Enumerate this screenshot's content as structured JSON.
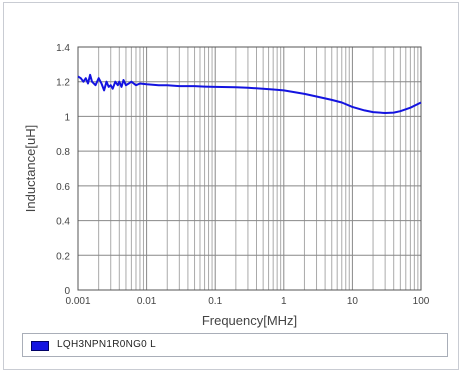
{
  "chart_data": {
    "type": "line",
    "xscale": "log",
    "xlabel": "Frequency[MHz]",
    "ylabel": "Inductance[uH]",
    "xlim": [
      0.001,
      100
    ],
    "ylim": [
      0,
      1.4
    ],
    "x_ticks": [
      "0.001",
      "0.01",
      "0.1",
      "1",
      "10",
      "100"
    ],
    "y_ticks": [
      "0",
      "0.2",
      "0.4",
      "0.6",
      "0.8",
      "1",
      "1.2",
      "1.4"
    ],
    "grid": true,
    "legend_position": "bottom",
    "colors": {
      "series": "#1414e0",
      "grid": "#aaaaaa",
      "axis_text": "#444444"
    },
    "series": [
      {
        "name": "LQH3NPN1R0NG0 L",
        "x": [
          0.001,
          0.0011,
          0.0012,
          0.0013,
          0.0014,
          0.0015,
          0.0016,
          0.0018,
          0.002,
          0.0022,
          0.0024,
          0.0026,
          0.0028,
          0.003,
          0.0032,
          0.0035,
          0.0038,
          0.004,
          0.0043,
          0.0046,
          0.005,
          0.0055,
          0.006,
          0.007,
          0.008,
          0.01,
          0.015,
          0.02,
          0.03,
          0.05,
          0.07,
          0.1,
          0.2,
          0.3,
          0.5,
          0.7,
          1,
          2,
          3,
          5,
          7,
          10,
          15,
          20,
          30,
          40,
          50,
          70,
          100
        ],
        "y": [
          1.23,
          1.22,
          1.2,
          1.22,
          1.19,
          1.24,
          1.2,
          1.18,
          1.22,
          1.19,
          1.15,
          1.2,
          1.17,
          1.18,
          1.16,
          1.2,
          1.18,
          1.2,
          1.17,
          1.21,
          1.18,
          1.19,
          1.2,
          1.18,
          1.19,
          1.185,
          1.18,
          1.18,
          1.175,
          1.175,
          1.172,
          1.17,
          1.168,
          1.165,
          1.16,
          1.155,
          1.15,
          1.13,
          1.115,
          1.095,
          1.08,
          1.055,
          1.035,
          1.025,
          1.02,
          1.022,
          1.03,
          1.05,
          1.08
        ]
      }
    ]
  }
}
